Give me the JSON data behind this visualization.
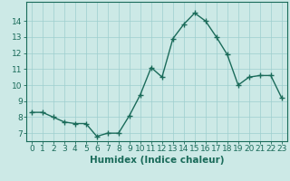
{
  "x": [
    0,
    1,
    2,
    3,
    4,
    5,
    6,
    7,
    8,
    9,
    10,
    11,
    12,
    13,
    14,
    15,
    16,
    17,
    18,
    19,
    20,
    21,
    22,
    23
  ],
  "y": [
    8.3,
    8.3,
    8.0,
    7.7,
    7.6,
    7.6,
    6.8,
    7.0,
    7.0,
    8.1,
    9.4,
    11.1,
    10.5,
    12.9,
    13.8,
    14.5,
    14.0,
    13.0,
    11.9,
    10.0,
    10.5,
    10.6,
    10.6,
    9.2
  ],
  "line_color": "#1a6b5a",
  "marker": "+",
  "marker_size": 4,
  "marker_lw": 1.0,
  "line_width": 1.0,
  "bg_color": "#cce9e6",
  "grid_color": "#9ecece",
  "tick_color": "#1a6b5a",
  "xlabel": "Humidex (Indice chaleur)",
  "ylim": [
    6.5,
    15.2
  ],
  "xlim": [
    -0.5,
    23.5
  ],
  "yticks": [
    7,
    8,
    9,
    10,
    11,
    12,
    13,
    14
  ],
  "xticks": [
    0,
    1,
    2,
    3,
    4,
    5,
    6,
    7,
    8,
    9,
    10,
    11,
    12,
    13,
    14,
    15,
    16,
    17,
    18,
    19,
    20,
    21,
    22,
    23
  ],
  "tick_fontsize": 6.5,
  "label_fontsize": 7.5
}
